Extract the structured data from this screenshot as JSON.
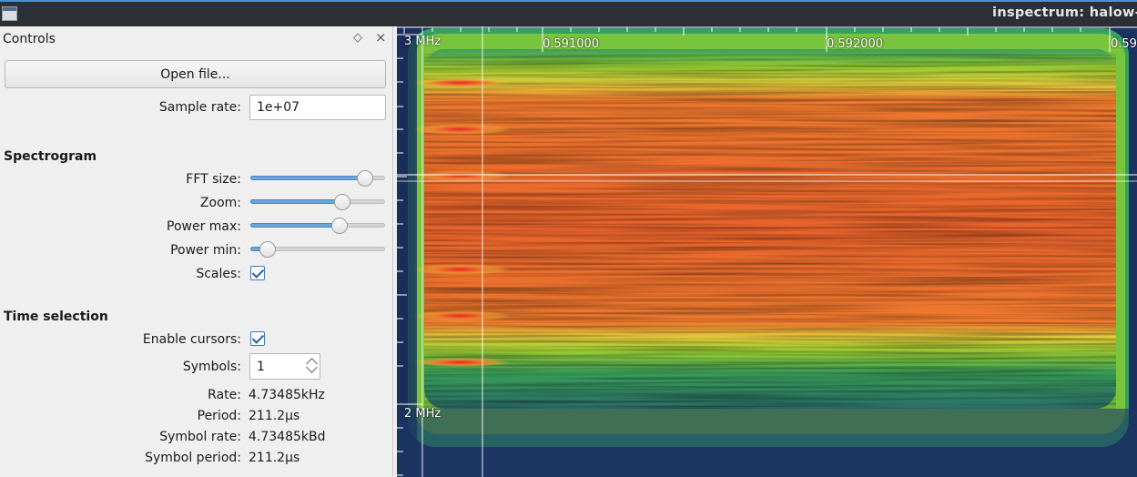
{
  "window": {
    "title": "inspectrum: halow-"
  },
  "controls": {
    "title": "Controls",
    "float_glyph": "◇",
    "close_glyph": "×",
    "open_file_label": "Open file...",
    "sample_rate_label": "Sample rate:",
    "sample_rate_value": "1e+07",
    "spectrogram": {
      "heading": "Spectrogram",
      "fft_size_label": "FFT size:",
      "fft_size_level": 0.85,
      "zoom_label": "Zoom:",
      "zoom_level": 0.68,
      "power_max_label": "Power max:",
      "power_max_level": 0.66,
      "power_min_label": "Power min:",
      "power_min_level": 0.13,
      "scales_label": "Scales:",
      "scales_checked": true
    },
    "time_selection": {
      "heading": "Time selection",
      "enable_cursors_label": "Enable cursors:",
      "enable_cursors_checked": true,
      "symbols_label": "Symbols:",
      "symbols_value": "1",
      "rate_label": "Rate:",
      "rate_value": "4.73485kHz",
      "period_label": "Period:",
      "period_value": "211.2µs",
      "symbol_rate_label": "Symbol rate:",
      "symbol_rate_value": "4.73485kBd",
      "symbol_period_label": "Symbol period:",
      "symbol_period_value": "211.2µs"
    }
  },
  "spectrogram_view": {
    "time_ticks": [
      "0.591000",
      "0.592000",
      "0.59"
    ],
    "freq_ticks": [
      "3 MHz",
      "2 MHz"
    ],
    "colors": {
      "background": "#1a2c5a",
      "low": "#2e8a6a",
      "mid": "#7cc43a",
      "high": "#e8d23a",
      "peak": "#e8442a"
    }
  }
}
